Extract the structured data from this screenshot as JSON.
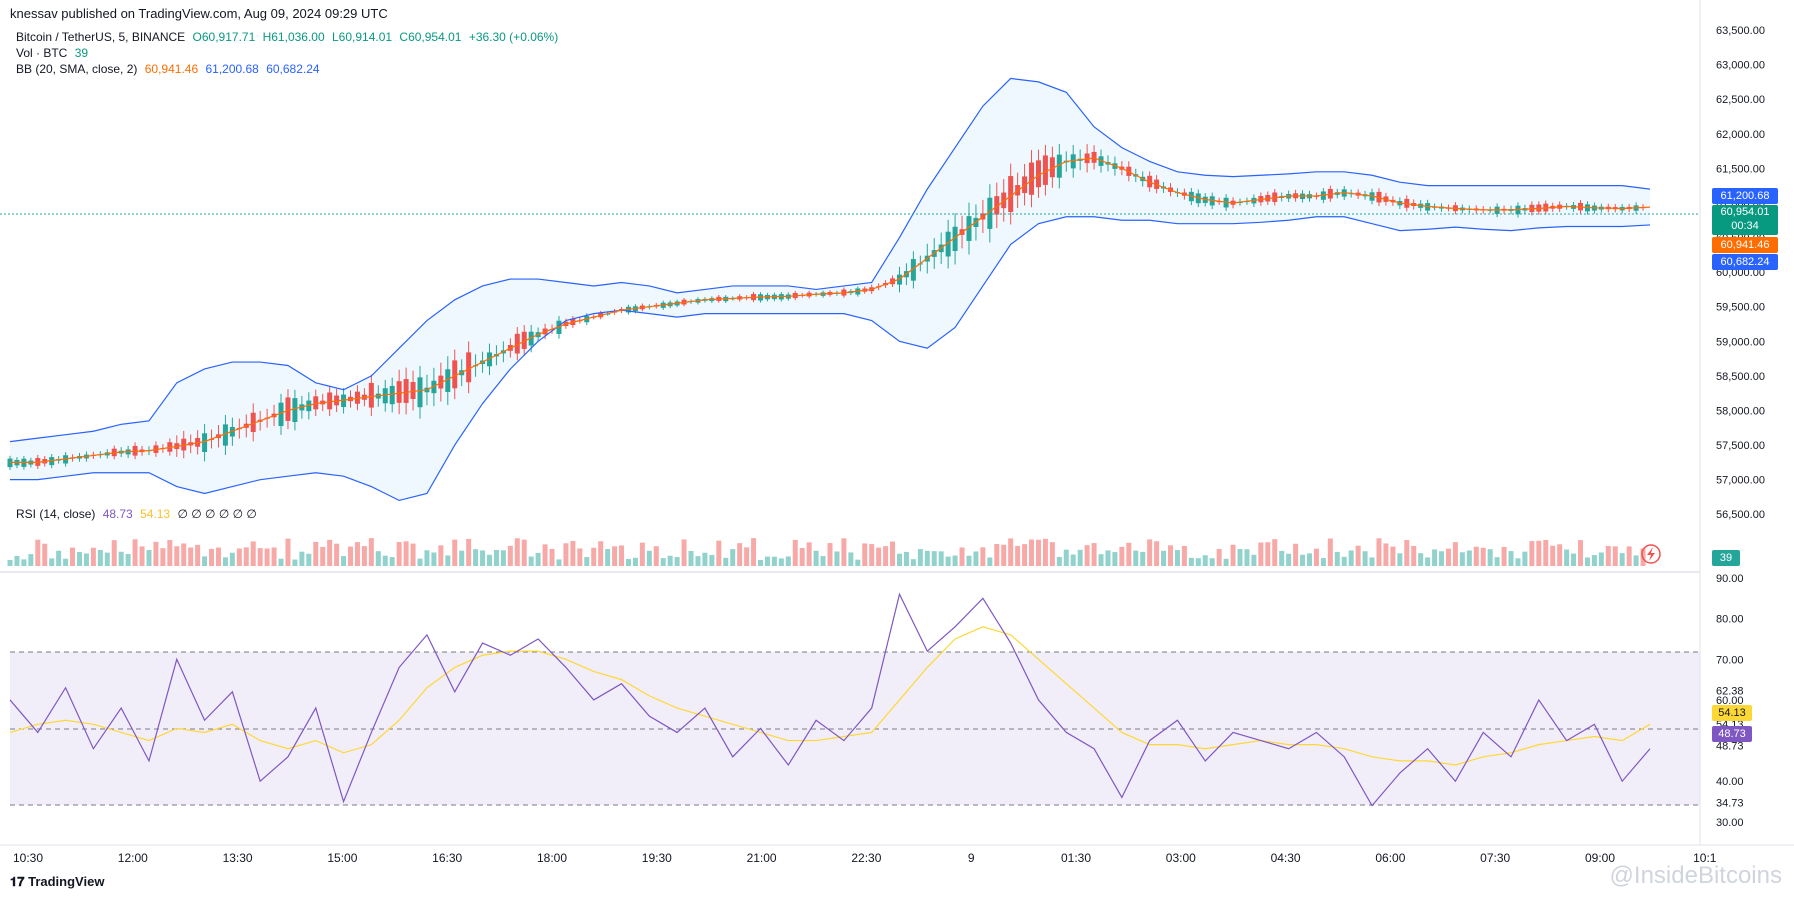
{
  "header": {
    "published": "knessav published on TradingView.com, Aug 09, 2024 09:29 UTC"
  },
  "legend": {
    "symbol": "Bitcoin / TetherUS, 5, BINANCE",
    "o": "O60,917.71",
    "h": "H61,036.00",
    "l": "L60,914.01",
    "c": "C60,954.01",
    "chg": "+36.30 (+0.06%)",
    "vol_label": "Vol · BTC",
    "vol_val": "39",
    "bb_label": "BB (20, SMA, close, 2)",
    "bb_mid": "60,941.46",
    "bb_up": "61,200.68",
    "bb_low": "60,682.24",
    "rsi_label": "RSI (14, close)",
    "rsi_val": "48.73",
    "rsi_ma": "54.13",
    "rsi_zeros": "∅ ∅ ∅ ∅ ∅ ∅"
  },
  "price_tags": {
    "bb_up": "61,200.68",
    "last": "60,954.01",
    "countdown": "00:34",
    "bb_mid": "60,941.46",
    "bb_low": "60,682.24",
    "vol": "39",
    "rsi_ma": "54.13",
    "rsi": "48.73"
  },
  "colors": {
    "up": "#26a69a",
    "down": "#ef5350",
    "band": "#2962ff",
    "basis": "#ff6d00",
    "rsi": "#7e57c2",
    "rsi_ma": "#fdd835"
  },
  "footer": {
    "brand": "TradingView",
    "watermark": "@InsideBitcoins"
  },
  "chart_data": [
    {
      "type": "line",
      "title": "Bitcoin / TetherUS, 5, BINANCE",
      "ylim": [
        56200,
        63500
      ],
      "y_ticks": [
        "63,500.00",
        "63,000.00",
        "62,500.00",
        "62,000.00",
        "61,500.00",
        "61,000.00",
        "60,500.00",
        "60,000.00",
        "59,500.00",
        "59,000.00",
        "58,500.00",
        "58,000.00",
        "57,500.00",
        "57,000.00",
        "56,500.00"
      ],
      "x_ticks": [
        "10:30",
        "12:00",
        "13:30",
        "15:00",
        "16:30",
        "18:00",
        "19:30",
        "21:00",
        "22:30",
        "9",
        "01:30",
        "03:00",
        "04:30",
        "06:00",
        "07:30",
        "09:00",
        "10:1"
      ],
      "series": [
        {
          "name": "BB (20, SMA, close, 2)",
          "values": [
            57250,
            57250,
            57300,
            57350,
            57400,
            57420,
            57480,
            57550,
            57700,
            57850,
            58000,
            58100,
            58150,
            58200,
            58250,
            58300,
            58500,
            58700,
            58900,
            59100,
            59250,
            59350,
            59450,
            59500,
            59550,
            59600,
            59620,
            59640,
            59650,
            59680,
            59700,
            59750,
            59900,
            60200,
            60500,
            60800,
            61100,
            61400,
            61600,
            61650,
            61500,
            61300,
            61150,
            61050,
            61000,
            61050,
            61100,
            61100,
            61150,
            61100,
            61000,
            60950,
            60920,
            60900,
            60900,
            60920,
            60950,
            60930,
            60920,
            60940
          ]
        }
      ],
      "bb_upper": [
        57550,
        57600,
        57650,
        57700,
        57800,
        57850,
        58400,
        58600,
        58700,
        58700,
        58650,
        58400,
        58300,
        58500,
        58900,
        59300,
        59600,
        59800,
        59900,
        59900,
        59850,
        59800,
        59850,
        59800,
        59700,
        59750,
        59800,
        59800,
        59800,
        59750,
        59800,
        59850,
        60500,
        61200,
        61800,
        62400,
        62800,
        62750,
        62600,
        62100,
        61800,
        61600,
        61450,
        61400,
        61380,
        61400,
        61420,
        61450,
        61450,
        61400,
        61300,
        61250,
        61250,
        61250,
        61250,
        61250,
        61250,
        61250,
        61250,
        61200
      ],
      "bb_lower": [
        57000,
        57000,
        57050,
        57100,
        57100,
        57100,
        56900,
        56800,
        56900,
        57000,
        57050,
        57100,
        57050,
        56900,
        56700,
        56800,
        57500,
        58100,
        58600,
        59000,
        59300,
        59400,
        59450,
        59400,
        59350,
        59400,
        59400,
        59400,
        59400,
        59400,
        59400,
        59300,
        59000,
        58900,
        59200,
        59800,
        60400,
        60700,
        60800,
        60800,
        60750,
        60750,
        60700,
        60700,
        60700,
        60720,
        60750,
        60800,
        60800,
        60700,
        60600,
        60620,
        60650,
        60620,
        60600,
        60640,
        60660,
        60660,
        60660,
        60682
      ]
    },
    {
      "type": "line",
      "title": "RSI (14, close)",
      "ylim": [
        28,
        90
      ],
      "y_ticks": [
        "90.00",
        "80.00",
        "70.00",
        "62.38",
        "60.00",
        "54.13",
        "48.73",
        "40.00",
        "34.73",
        "30.00"
      ],
      "series": [
        {
          "name": "RSI (14, close)",
          "values": [
            60,
            52,
            63,
            48,
            58,
            45,
            70,
            55,
            62,
            40,
            46,
            58,
            35,
            52,
            68,
            76,
            62,
            74,
            71,
            75,
            68,
            60,
            64,
            56,
            52,
            58,
            46,
            53,
            44,
            55,
            50,
            58,
            86,
            72,
            78,
            85,
            74,
            60,
            52,
            48,
            36,
            50,
            55,
            45,
            52,
            50,
            48,
            52,
            46,
            34,
            42,
            48,
            40,
            52,
            46,
            60,
            50,
            54,
            40,
            48
          ]
        },
        {
          "name": "RSI MA",
          "values": [
            52,
            54,
            55,
            54,
            52,
            50,
            53,
            52,
            54,
            50,
            48,
            50,
            47,
            49,
            55,
            63,
            68,
            71,
            72,
            72,
            70,
            67,
            65,
            61,
            58,
            56,
            54,
            52,
            50,
            50,
            51,
            52,
            60,
            68,
            75,
            78,
            76,
            70,
            64,
            58,
            52,
            49,
            49,
            48,
            49,
            50,
            49,
            49,
            48,
            46,
            45,
            45,
            44,
            46,
            47,
            49,
            50,
            51,
            50,
            54
          ]
        }
      ]
    }
  ]
}
